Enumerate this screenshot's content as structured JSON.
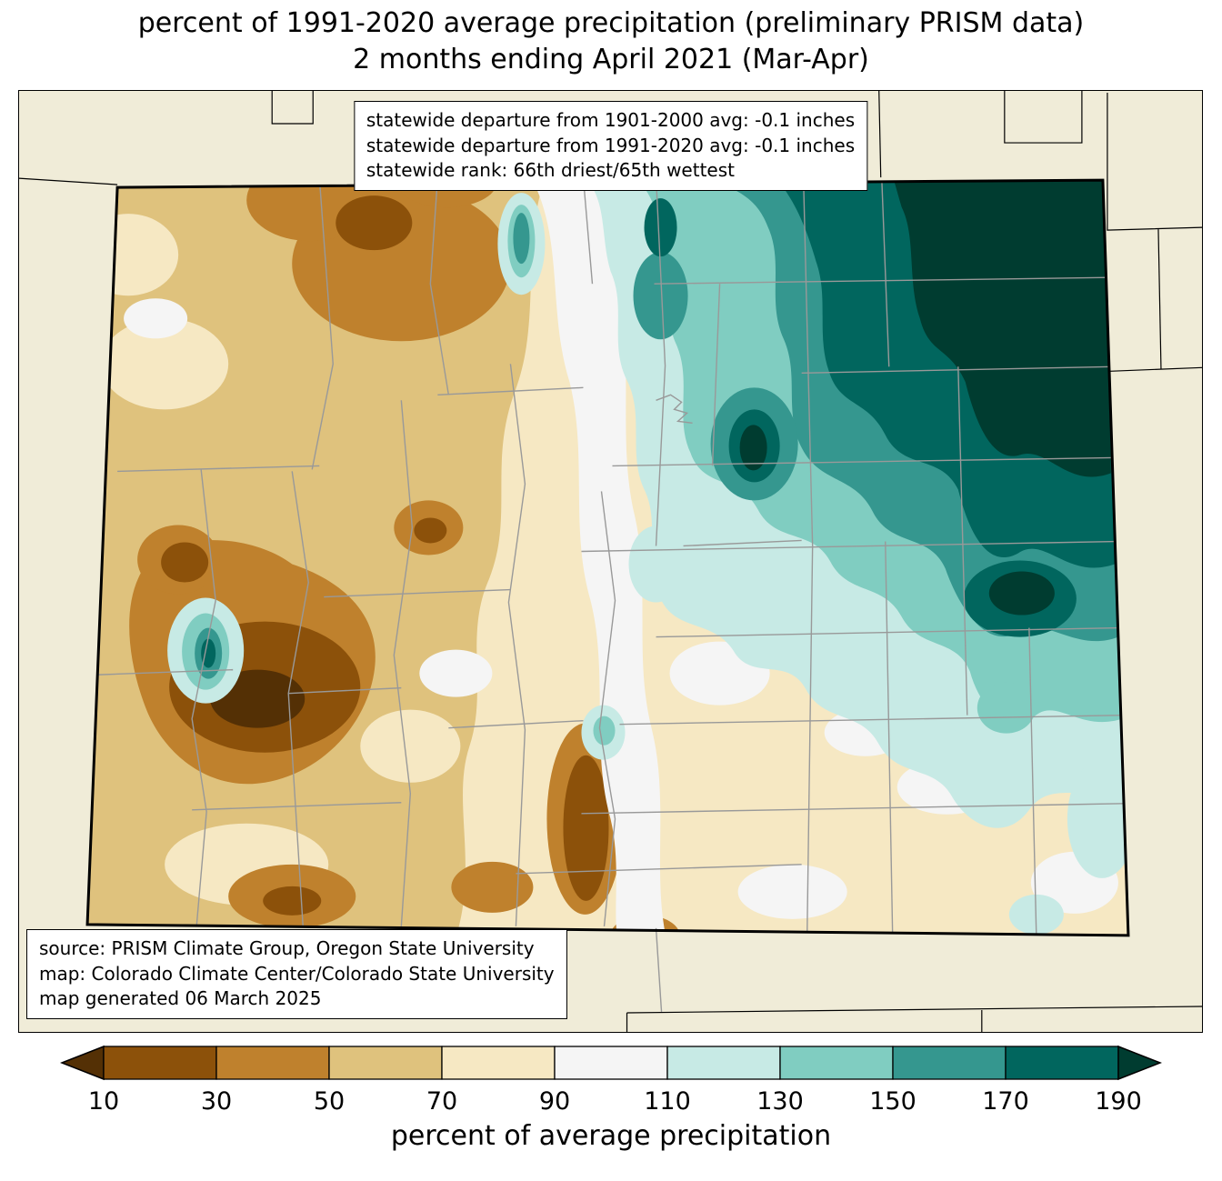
{
  "title": {
    "line1": "percent of 1991-2020 average precipitation (preliminary PRISM data)",
    "line2": "2 months ending April 2021 (Mar-Apr)"
  },
  "stats_box": {
    "line1": "statewide departure from 1901-2000 avg: -0.1 inches",
    "line2": "statewide departure from 1991-2020 avg: -0.1 inches",
    "line3": "statewide rank: 66th driest/65th wettest"
  },
  "credits_box": {
    "line1": "source: PRISM Climate Group, Oregon State University",
    "line2": "map: Colorado Climate Center/Colorado State University",
    "line3": "map generated 06 March 2025"
  },
  "colorbar": {
    "label": "percent of average precipitation",
    "ticks": [
      "10",
      "30",
      "50",
      "70",
      "90",
      "110",
      "130",
      "150",
      "170",
      "190"
    ],
    "palette": {
      "under": "#543005",
      "segments": [
        "#8c510a",
        "#bf812d",
        "#dfc27d",
        "#f6e8c3",
        "#f5f5f5",
        "#c7eae5",
        "#80cdc1",
        "#35978f",
        "#01665e"
      ],
      "over": "#003c30"
    }
  },
  "map": {
    "region": "Colorado",
    "background_color": "#f0ecd8",
    "county_line_color": "#999999",
    "state_border_color": "#000000"
  }
}
